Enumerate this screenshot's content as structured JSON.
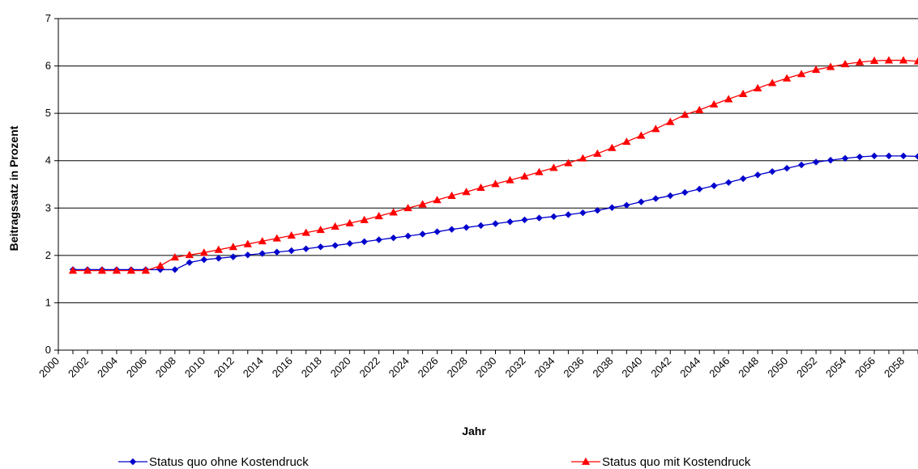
{
  "chart_data": {
    "type": "line",
    "xlabel": "Jahr",
    "ylabel": "Beitragssatz in Prozent",
    "xlim": [
      2000,
      2059
    ],
    "ylim": [
      0,
      7
    ],
    "yticks": [
      0,
      1,
      2,
      3,
      4,
      5,
      6,
      7
    ],
    "xticks": [
      2000,
      2002,
      2004,
      2006,
      2008,
      2010,
      2012,
      2014,
      2016,
      2018,
      2020,
      2022,
      2024,
      2026,
      2028,
      2030,
      2032,
      2034,
      2036,
      2038,
      2040,
      2042,
      2044,
      2046,
      2048,
      2050,
      2052,
      2054,
      2056,
      2058
    ],
    "grid": "horizontal",
    "legend_position": "bottom",
    "x": [
      2001,
      2002,
      2003,
      2004,
      2005,
      2006,
      2007,
      2008,
      2009,
      2010,
      2011,
      2012,
      2013,
      2014,
      2015,
      2016,
      2017,
      2018,
      2019,
      2020,
      2021,
      2022,
      2023,
      2024,
      2025,
      2026,
      2027,
      2028,
      2029,
      2030,
      2031,
      2032,
      2033,
      2034,
      2035,
      2036,
      2037,
      2038,
      2039,
      2040,
      2041,
      2042,
      2043,
      2044,
      2045,
      2046,
      2047,
      2048,
      2049,
      2050,
      2051,
      2052,
      2053,
      2054,
      2055,
      2056,
      2057,
      2058,
      2059
    ],
    "series": [
      {
        "name": "Status quo ohne Kostendruck",
        "color": "#0000cc",
        "marker": "diamond",
        "values": [
          1.7,
          1.7,
          1.7,
          1.7,
          1.7,
          1.7,
          1.7,
          1.7,
          1.85,
          1.91,
          1.94,
          1.97,
          2.01,
          2.04,
          2.07,
          2.1,
          2.14,
          2.18,
          2.21,
          2.25,
          2.29,
          2.33,
          2.37,
          2.41,
          2.45,
          2.5,
          2.55,
          2.59,
          2.63,
          2.67,
          2.71,
          2.75,
          2.79,
          2.82,
          2.86,
          2.9,
          2.95,
          3.01,
          3.06,
          3.13,
          3.2,
          3.26,
          3.33,
          3.4,
          3.47,
          3.54,
          3.62,
          3.7,
          3.77,
          3.84,
          3.91,
          3.97,
          4.01,
          4.05,
          4.08,
          4.1,
          4.1,
          4.1,
          4.09
        ]
      },
      {
        "name": "Status quo mit Kostendruck",
        "color": "#ff0000",
        "marker": "triangle",
        "values": [
          1.68,
          1.68,
          1.68,
          1.68,
          1.68,
          1.68,
          1.78,
          1.96,
          2.01,
          2.06,
          2.12,
          2.18,
          2.24,
          2.3,
          2.36,
          2.42,
          2.48,
          2.54,
          2.61,
          2.68,
          2.75,
          2.83,
          2.91,
          3.0,
          3.08,
          3.17,
          3.26,
          3.34,
          3.43,
          3.51,
          3.59,
          3.67,
          3.76,
          3.85,
          3.95,
          4.05,
          4.15,
          4.27,
          4.4,
          4.53,
          4.67,
          4.82,
          4.97,
          5.07,
          5.19,
          5.3,
          5.41,
          5.53,
          5.64,
          5.74,
          5.83,
          5.92,
          5.98,
          6.04,
          6.08,
          6.11,
          6.12,
          6.12,
          6.1
        ]
      }
    ]
  }
}
